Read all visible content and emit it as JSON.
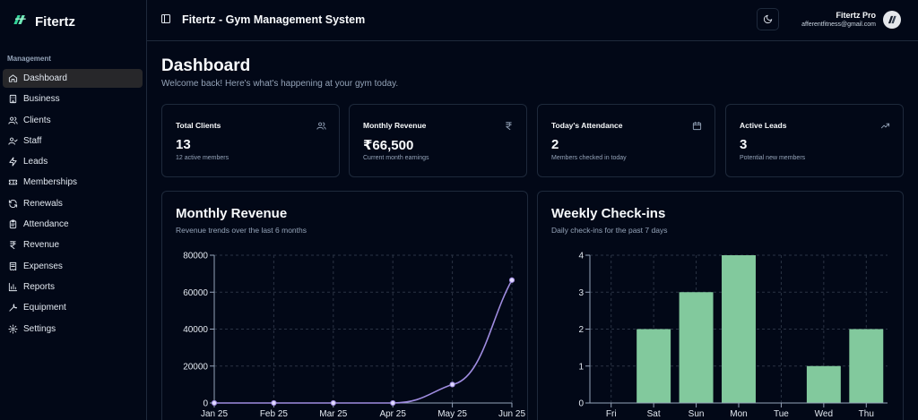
{
  "app": {
    "brand": "Fitertz",
    "title": "Fitertz - Gym Management System"
  },
  "sidebar": {
    "section_label": "Management",
    "items": [
      {
        "label": "Dashboard",
        "icon": "home-icon",
        "active": true
      },
      {
        "label": "Business",
        "icon": "building-icon"
      },
      {
        "label": "Clients",
        "icon": "users-icon"
      },
      {
        "label": "Staff",
        "icon": "user-check-icon"
      },
      {
        "label": "Leads",
        "icon": "zap-icon"
      },
      {
        "label": "Memberships",
        "icon": "ticket-icon"
      },
      {
        "label": "Renewals",
        "icon": "refresh-icon"
      },
      {
        "label": "Attendance",
        "icon": "clipboard-icon"
      },
      {
        "label": "Revenue",
        "icon": "rupee-icon"
      },
      {
        "label": "Expenses",
        "icon": "receipt-icon"
      },
      {
        "label": "Reports",
        "icon": "bar-chart-icon"
      },
      {
        "label": "Equipment",
        "icon": "wrench-icon"
      },
      {
        "label": "Settings",
        "icon": "gear-icon"
      }
    ]
  },
  "header": {
    "user_name": "Fitertz Pro",
    "user_email": "afferentfitness@gmail.com"
  },
  "main": {
    "title": "Dashboard",
    "subtitle": "Welcome back! Here's what's happening at your gym today.",
    "stats": [
      {
        "title": "Total Clients",
        "value": "13",
        "sub": "12 active members",
        "icon": "users-icon"
      },
      {
        "title": "Monthly Revenue",
        "value": "₹66,500",
        "sub": "Current month earnings",
        "icon": "rupee-icon"
      },
      {
        "title": "Today's Attendance",
        "value": "2",
        "sub": "Members checked in today",
        "icon": "calendar-icon"
      },
      {
        "title": "Active Leads",
        "value": "3",
        "sub": "Potential new members",
        "icon": "trending-up-icon"
      }
    ]
  },
  "colors": {
    "background": "#020817",
    "border": "#1e293b",
    "line": "#9f8ce0",
    "bar": "#82c99d"
  },
  "chart_data": [
    {
      "type": "line",
      "title": "Monthly Revenue",
      "subtitle": "Revenue trends over the last 6 months",
      "categories": [
        "Jan 25",
        "Feb 25",
        "Mar 25",
        "Apr 25",
        "May 25",
        "Jun 25"
      ],
      "values": [
        0,
        0,
        0,
        0,
        10000,
        66500
      ],
      "ylim": [
        0,
        80000
      ],
      "yticks": [
        "0",
        "20000",
        "40000",
        "60000",
        "80000"
      ],
      "grid": true
    },
    {
      "type": "bar",
      "title": "Weekly Check-ins",
      "subtitle": "Daily check-ins for the past 7 days",
      "categories": [
        "Fri",
        "Sat",
        "Sun",
        "Mon",
        "Tue",
        "Wed",
        "Thu"
      ],
      "values": [
        0,
        2,
        3,
        4,
        0,
        1,
        2
      ],
      "ylim": [
        0,
        4
      ],
      "yticks": [
        "0",
        "1",
        "2",
        "3",
        "4"
      ],
      "grid": true
    }
  ]
}
